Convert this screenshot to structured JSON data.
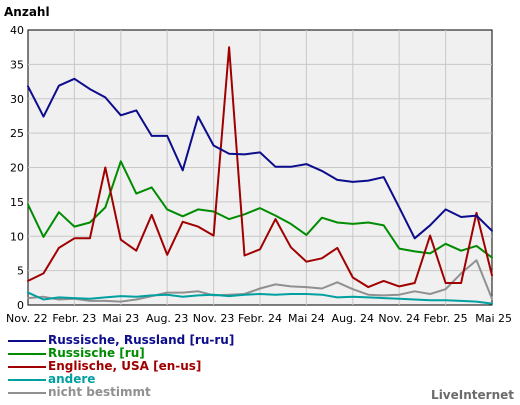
{
  "chart_data": {
    "type": "line",
    "ylabel": "Anzahl",
    "ylim": [
      0,
      40
    ],
    "yticks": [
      0,
      5,
      10,
      15,
      20,
      25,
      30,
      35,
      40
    ],
    "x_tick_labels": [
      "Nov. 22",
      "Febr. 23",
      "Mai 23",
      "Aug. 23",
      "Nov. 23",
      "Febr. 24",
      "Mai 24",
      "Aug. 24",
      "Nov. 24",
      "Febr. 25",
      "Mai 25"
    ],
    "grid": true,
    "legend_position": "bottom-left",
    "series": [
      {
        "name": "Russische, Russland [ru-ru]",
        "color": "#0c0c8c",
        "values": [
          31.8,
          27.4,
          31.9,
          32.9,
          31.4,
          30.2,
          27.6,
          28.3,
          24.6,
          24.6,
          19.6,
          27.4,
          23.2,
          22.0,
          21.9,
          22.2,
          20.1,
          20.1,
          20.5,
          19.5,
          18.2,
          17.9,
          18.1,
          18.6,
          14.2,
          9.7,
          11.6,
          13.9,
          12.8,
          13.0,
          10.8
        ]
      },
      {
        "name": "Russische [ru]",
        "color": "#008c00",
        "values": [
          14.6,
          9.9,
          13.5,
          11.4,
          12.0,
          14.2,
          20.9,
          16.2,
          17.1,
          13.9,
          12.9,
          13.9,
          13.6,
          12.5,
          13.2,
          14.1,
          13.0,
          11.8,
          10.2,
          12.7,
          12.0,
          11.8,
          12.0,
          11.6,
          8.2,
          7.8,
          7.5,
          8.9,
          7.9,
          8.6,
          6.9
        ]
      },
      {
        "name": "Englische, USA [en-us]",
        "color": "#a00000",
        "values": [
          3.5,
          4.6,
          8.3,
          9.7,
          9.7,
          20.0,
          9.5,
          7.9,
          13.1,
          7.3,
          12.1,
          11.4,
          10.1,
          37.5,
          7.2,
          8.1,
          12.5,
          8.4,
          6.3,
          6.8,
          8.3,
          4.0,
          2.6,
          3.5,
          2.7,
          3.2,
          10.1,
          3.2,
          3.2,
          13.4,
          4.3
        ]
      },
      {
        "name": "andere",
        "color": "#00a0a0",
        "values": [
          1.8,
          0.8,
          1.1,
          1.0,
          0.9,
          1.1,
          1.3,
          1.2,
          1.4,
          1.5,
          1.2,
          1.4,
          1.5,
          1.3,
          1.5,
          1.6,
          1.5,
          1.6,
          1.6,
          1.5,
          1.1,
          1.2,
          1.1,
          1.0,
          0.9,
          0.8,
          0.7,
          0.7,
          0.6,
          0.5,
          0.2
        ]
      },
      {
        "name": "nicht bestimmt",
        "color": "#909090",
        "values": [
          1.0,
          1.2,
          0.8,
          0.9,
          0.6,
          0.6,
          0.5,
          0.8,
          1.3,
          1.8,
          1.8,
          2.0,
          1.4,
          1.5,
          1.6,
          2.4,
          3.0,
          2.7,
          2.6,
          2.4,
          3.3,
          2.3,
          1.5,
          1.4,
          1.5,
          2.0,
          1.6,
          2.3,
          4.6,
          6.5,
          0.9
        ]
      }
    ]
  },
  "credit": "LiveInternet"
}
